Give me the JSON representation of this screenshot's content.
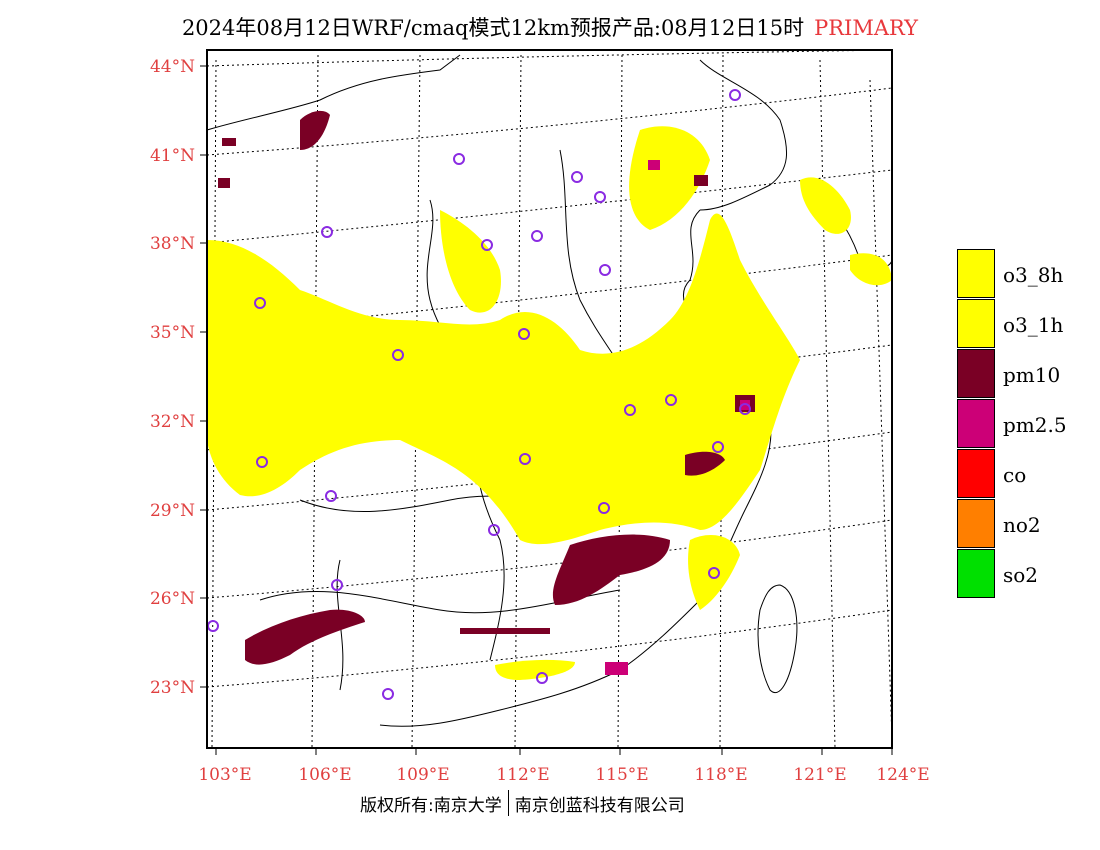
{
  "title": {
    "main": "2024年08月12日WRF/cmaq模式12km预报产品:08月12日15时",
    "tag": "PRIMARY"
  },
  "axes": {
    "lat_labels": [
      "44°N",
      "41°N",
      "38°N",
      "35°N",
      "32°N",
      "29°N",
      "26°N",
      "23°N"
    ],
    "lon_labels": [
      "103°E",
      "106°E",
      "109°E",
      "112°E",
      "115°E",
      "118°E",
      "121°E",
      "124°E"
    ]
  },
  "legend": [
    {
      "label": "o3_8h",
      "color": "#ffff00"
    },
    {
      "label": "o3_1h",
      "color": "#ffff00"
    },
    {
      "label": "pm10",
      "color": "#7a0025"
    },
    {
      "label": "pm2.5",
      "color": "#cc0077"
    },
    {
      "label": "co",
      "color": "#ff0000"
    },
    {
      "label": "no2",
      "color": "#ff7f00"
    },
    {
      "label": "so2",
      "color": "#00e000"
    }
  ],
  "footer": {
    "left": "版权所有:南京大学",
    "right": "南京创蓝科技有限公司"
  }
}
